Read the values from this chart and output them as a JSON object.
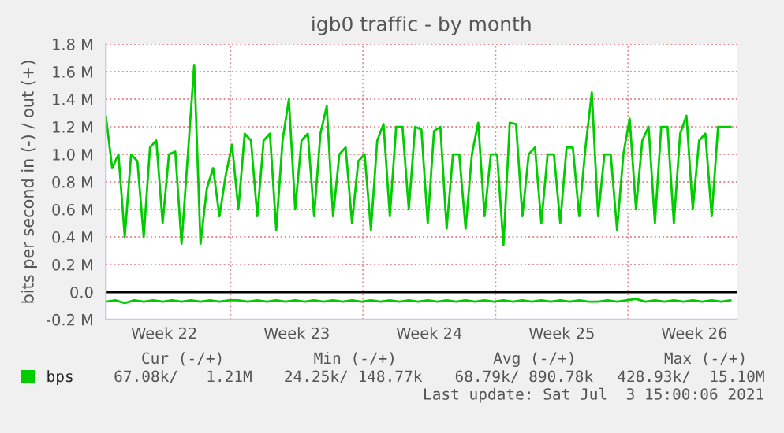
{
  "chart_data": {
    "type": "line",
    "title": "igb0 traffic - by month",
    "ylabel": "bits per second in (-) / out (+)",
    "xlim": [
      "2021-05-31T10:00",
      "2021-07-03T18:00"
    ],
    "xticks": [
      {
        "value": "2021-06-03T12:00",
        "label": "Week 22"
      },
      {
        "value": "2021-06-07T00:00",
        "label": null
      },
      {
        "value": "2021-06-10T12:00",
        "label": "Week 23"
      },
      {
        "value": "2021-06-14T00:00",
        "label": null
      },
      {
        "value": "2021-06-17T12:00",
        "label": "Week 24"
      },
      {
        "value": "2021-06-21T00:00",
        "label": null
      },
      {
        "value": "2021-06-24T12:00",
        "label": "Week 25"
      },
      {
        "value": "2021-06-28T00:00",
        "label": null
      },
      {
        "value": "2021-07-01T12:00",
        "label": "Week 26"
      }
    ],
    "ylim": [
      -0.2,
      1.8
    ],
    "yticks": [
      {
        "value": -0.2,
        "label": "-0.2 M"
      },
      {
        "value": 0,
        "label": "0.0"
      },
      {
        "value": 0.2,
        "label": "0.2 M"
      },
      {
        "value": 0.4,
        "label": "0.4 M"
      },
      {
        "value": 0.6,
        "label": "0.6 M"
      },
      {
        "value": 0.8,
        "label": "0.8 M"
      },
      {
        "value": 1.0,
        "label": "1.0 M"
      },
      {
        "value": 1.2,
        "label": "1.2 M"
      },
      {
        "value": 1.4,
        "label": "1.4 M"
      },
      {
        "value": 1.6,
        "label": "1.6 M"
      },
      {
        "value": 1.8,
        "label": "1.8 M"
      }
    ],
    "grid": true,
    "legend": "bottom left",
    "line_style": "solid",
    "ref_lines": [
      {
        "axis": "y",
        "value": 0,
        "label": null,
        "color": "#000000"
      }
    ],
    "series": [
      {
        "name": "bps",
        "color": "#00cc00",
        "x": [
          "2021-05-31T10:00",
          "2021-05-31T18:00",
          "2021-06-01T02:00",
          "2021-06-01T10:00",
          "2021-06-01T18:00",
          "2021-06-02T02:00",
          "2021-06-02T10:00",
          "2021-06-02T18:00",
          "2021-06-03T02:00",
          "2021-06-03T10:00",
          "2021-06-03T18:00",
          "2021-06-04T02:00",
          "2021-06-04T10:00",
          "2021-06-04T18:00",
          "2021-06-05T02:00",
          "2021-06-05T10:00",
          "2021-06-05T18:00",
          "2021-06-06T02:00",
          "2021-06-06T10:00",
          "2021-06-06T18:00",
          "2021-06-07T02:00",
          "2021-06-07T10:00",
          "2021-06-07T18:00",
          "2021-06-08T02:00",
          "2021-06-08T10:00",
          "2021-06-08T18:00",
          "2021-06-09T02:00",
          "2021-06-09T10:00",
          "2021-06-09T18:00",
          "2021-06-10T02:00",
          "2021-06-10T10:00",
          "2021-06-10T18:00",
          "2021-06-11T02:00",
          "2021-06-11T10:00",
          "2021-06-11T18:00",
          "2021-06-12T02:00",
          "2021-06-12T10:00",
          "2021-06-12T18:00",
          "2021-06-13T02:00",
          "2021-06-13T10:00",
          "2021-06-13T18:00",
          "2021-06-14T02:00",
          "2021-06-14T10:00",
          "2021-06-14T18:00",
          "2021-06-15T02:00",
          "2021-06-15T10:00",
          "2021-06-15T18:00",
          "2021-06-16T02:00",
          "2021-06-16T10:00",
          "2021-06-16T18:00",
          "2021-06-17T02:00",
          "2021-06-17T10:00",
          "2021-06-17T18:00",
          "2021-06-18T02:00",
          "2021-06-18T10:00",
          "2021-06-18T18:00",
          "2021-06-19T02:00",
          "2021-06-19T10:00",
          "2021-06-19T18:00",
          "2021-06-20T02:00",
          "2021-06-20T10:00",
          "2021-06-20T18:00",
          "2021-06-21T02:00",
          "2021-06-21T10:00",
          "2021-06-21T18:00",
          "2021-06-22T02:00",
          "2021-06-22T10:00",
          "2021-06-22T18:00",
          "2021-06-23T02:00",
          "2021-06-23T10:00",
          "2021-06-23T18:00",
          "2021-06-24T02:00",
          "2021-06-24T10:00",
          "2021-06-24T18:00",
          "2021-06-25T02:00",
          "2021-06-25T10:00",
          "2021-06-25T18:00",
          "2021-06-26T02:00",
          "2021-06-26T10:00",
          "2021-06-26T18:00",
          "2021-06-27T02:00",
          "2021-06-27T10:00",
          "2021-06-27T18:00",
          "2021-06-28T02:00",
          "2021-06-28T10:00",
          "2021-06-28T18:00",
          "2021-06-29T02:00",
          "2021-06-29T10:00",
          "2021-06-29T18:00",
          "2021-06-30T02:00",
          "2021-06-30T10:00",
          "2021-06-30T18:00",
          "2021-07-01T02:00",
          "2021-07-01T10:00",
          "2021-07-01T18:00",
          "2021-07-02T02:00",
          "2021-07-02T10:00",
          "2021-07-02T18:00",
          "2021-07-03T02:00",
          "2021-07-03T10:00"
        ],
        "values": [
          1.28,
          0.9,
          1.0,
          0.4,
          1.0,
          0.95,
          0.4,
          1.05,
          1.1,
          0.5,
          1.0,
          1.02,
          0.35,
          1.0,
          1.65,
          0.35,
          0.75,
          0.9,
          0.55,
          0.85,
          1.07,
          0.6,
          1.15,
          1.1,
          0.55,
          1.1,
          1.15,
          0.45,
          1.1,
          1.4,
          0.6,
          1.1,
          1.15,
          0.55,
          1.15,
          1.35,
          0.55,
          1.0,
          1.05,
          0.5,
          0.95,
          1.0,
          0.45,
          1.1,
          1.22,
          0.55,
          1.2,
          1.2,
          0.6,
          1.2,
          1.18,
          0.5,
          1.17,
          1.2,
          0.46,
          1.0,
          1.0,
          0.46,
          1.0,
          1.23,
          0.55,
          1.0,
          1.0,
          0.34,
          1.23,
          1.22,
          0.55,
          1.0,
          1.05,
          0.5,
          1.0,
          1.0,
          0.5,
          1.05,
          1.05,
          0.55,
          1.05,
          1.45,
          0.55,
          1.0,
          1.0,
          0.45,
          1.0,
          1.26,
          0.6,
          1.1,
          1.2,
          0.5,
          1.2,
          1.2,
          0.5,
          1.15,
          1.28,
          0.6,
          1.1,
          1.15,
          0.55,
          1.2,
          1.2,
          1.2
        ]
      },
      {
        "color": "#00cc00",
        "x": [
          "2021-05-31T10:00",
          "2021-05-31T22:00",
          "2021-06-01T10:00",
          "2021-06-01T22:00",
          "2021-06-02T10:00",
          "2021-06-02T22:00",
          "2021-06-03T10:00",
          "2021-06-03T22:00",
          "2021-06-04T10:00",
          "2021-06-04T22:00",
          "2021-06-05T10:00",
          "2021-06-05T22:00",
          "2021-06-06T10:00",
          "2021-06-06T22:00",
          "2021-06-07T10:00",
          "2021-06-07T22:00",
          "2021-06-08T10:00",
          "2021-06-08T22:00",
          "2021-06-09T10:00",
          "2021-06-09T22:00",
          "2021-06-10T10:00",
          "2021-06-10T22:00",
          "2021-06-11T10:00",
          "2021-06-11T22:00",
          "2021-06-12T10:00",
          "2021-06-12T22:00",
          "2021-06-13T10:00",
          "2021-06-13T22:00",
          "2021-06-14T10:00",
          "2021-06-14T22:00",
          "2021-06-15T10:00",
          "2021-06-15T22:00",
          "2021-06-16T10:00",
          "2021-06-16T22:00",
          "2021-06-17T10:00",
          "2021-06-17T22:00",
          "2021-06-18T10:00",
          "2021-06-18T22:00",
          "2021-06-19T10:00",
          "2021-06-19T22:00",
          "2021-06-20T10:00",
          "2021-06-20T22:00",
          "2021-06-21T10:00",
          "2021-06-21T22:00",
          "2021-06-22T10:00",
          "2021-06-22T22:00",
          "2021-06-23T10:00",
          "2021-06-23T22:00",
          "2021-06-24T10:00",
          "2021-06-24T22:00",
          "2021-06-25T10:00",
          "2021-06-25T22:00",
          "2021-06-26T10:00",
          "2021-06-26T22:00",
          "2021-06-27T10:00",
          "2021-06-27T22:00",
          "2021-06-28T10:00",
          "2021-06-28T22:00",
          "2021-06-29T10:00",
          "2021-06-29T22:00",
          "2021-06-30T10:00",
          "2021-06-30T22:00",
          "2021-07-01T10:00",
          "2021-07-01T22:00",
          "2021-07-02T10:00",
          "2021-07-02T22:00",
          "2021-07-03T10:00"
        ],
        "values": [
          -0.07,
          -0.06,
          -0.08,
          -0.06,
          -0.07,
          -0.06,
          -0.07,
          -0.06,
          -0.07,
          -0.06,
          -0.07,
          -0.06,
          -0.07,
          -0.06,
          -0.06,
          -0.07,
          -0.06,
          -0.07,
          -0.06,
          -0.07,
          -0.06,
          -0.07,
          -0.06,
          -0.07,
          -0.06,
          -0.07,
          -0.06,
          -0.07,
          -0.06,
          -0.07,
          -0.06,
          -0.07,
          -0.06,
          -0.07,
          -0.06,
          -0.07,
          -0.06,
          -0.07,
          -0.06,
          -0.07,
          -0.06,
          -0.07,
          -0.06,
          -0.07,
          -0.06,
          -0.07,
          -0.06,
          -0.07,
          -0.06,
          -0.07,
          -0.06,
          -0.07,
          -0.07,
          -0.06,
          -0.07,
          -0.06,
          -0.05,
          -0.07,
          -0.06,
          -0.07,
          -0.06,
          -0.07,
          -0.06,
          -0.07,
          -0.06,
          -0.07,
          -0.06
        ]
      }
    ],
    "annotations": [
      "Cur (-/+)",
      "Min (-/+)",
      "Avg (-/+)",
      "Max (-/+)",
      "67.08k/   1.21M",
      "24.25k/ 148.77k",
      "68.79k/ 890.78k",
      "428.93k/  15.10M",
      "Last update: Sat Jul  3 15:00:06 2021"
    ]
  }
}
